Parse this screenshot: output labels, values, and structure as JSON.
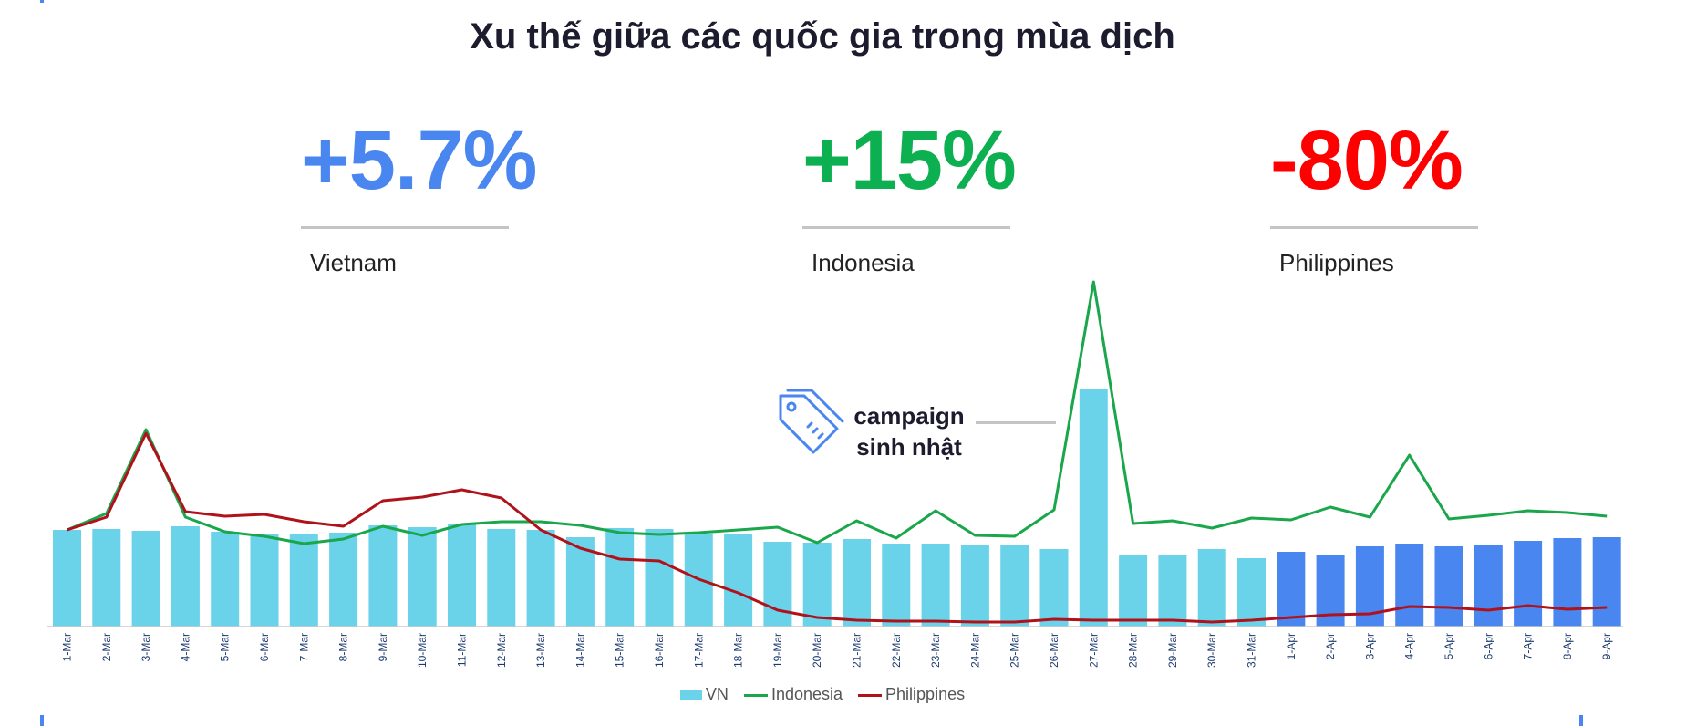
{
  "title": "Xu thế giữa các quốc gia trong mùa dịch",
  "kpis": [
    {
      "value": "+5.7%",
      "label": "Vietnam",
      "color": "#4a86f0"
    },
    {
      "value": "+15%",
      "label": "Indonesia",
      "color": "#0cb050"
    },
    {
      "value": "-80%",
      "label": "Philippines",
      "color": "#fe0000"
    }
  ],
  "annotation": {
    "line1": "campaign",
    "line2": "sinh nhật",
    "icon": "price-tag-icon"
  },
  "legend": [
    "VN",
    "Indonesia",
    "Philippines"
  ],
  "colors": {
    "bar_mar": "#6ad3ea",
    "bar_apr": "#4a86f0",
    "indonesia": "#1aa64a",
    "philippines": "#b0121b",
    "axis": "#c9c9c9"
  },
  "chart_data": {
    "type": "bar",
    "categories": [
      "1-Mar",
      "2-Mar",
      "3-Mar",
      "4-Mar",
      "5-Mar",
      "6-Mar",
      "7-Mar",
      "8-Mar",
      "9-Mar",
      "10-Mar",
      "11-Mar",
      "12-Mar",
      "13-Mar",
      "14-Mar",
      "15-Mar",
      "16-Mar",
      "17-Mar",
      "18-Mar",
      "19-Mar",
      "20-Mar",
      "21-Mar",
      "22-Mar",
      "23-Mar",
      "24-Mar",
      "25-Mar",
      "26-Mar",
      "27-Mar",
      "28-Mar",
      "29-Mar",
      "30-Mar",
      "31-Mar",
      "1-Apr",
      "2-Apr",
      "3-Apr",
      "4-Apr",
      "5-Apr",
      "6-Apr",
      "7-Apr",
      "8-Apr",
      "9-Apr"
    ],
    "series": [
      {
        "name": "VN",
        "type": "bar",
        "values": [
          106,
          107,
          105,
          110,
          104,
          101,
          102,
          103,
          111,
          109,
          112,
          107,
          106,
          98,
          108,
          107,
          101,
          102,
          93,
          92,
          96,
          91,
          91,
          89,
          90,
          85,
          260,
          78,
          79,
          85,
          75,
          82,
          79,
          88,
          91,
          88,
          89,
          94,
          97,
          98
        ]
      },
      {
        "name": "Indonesia",
        "type": "line",
        "values": [
          106,
          124,
          216,
          120,
          104,
          99,
          91,
          96,
          110,
          100,
          112,
          115,
          115,
          111,
          103,
          101,
          103,
          106,
          109,
          92,
          116,
          97,
          127,
          100,
          99,
          128,
          378,
          113,
          116,
          108,
          119,
          117,
          131,
          120,
          188,
          118,
          122,
          127,
          125,
          121
        ]
      },
      {
        "name": "Philippines",
        "type": "line",
        "values": [
          106,
          120,
          212,
          126,
          121,
          123,
          115,
          110,
          138,
          142,
          150,
          141,
          106,
          86,
          74,
          72,
          52,
          37,
          18,
          10,
          7,
          6,
          6,
          5,
          5,
          8,
          7,
          7,
          7,
          5,
          7,
          10,
          13,
          14,
          22,
          21,
          18,
          23,
          19,
          21
        ]
      }
    ],
    "ylim": [
      0,
      400
    ]
  }
}
